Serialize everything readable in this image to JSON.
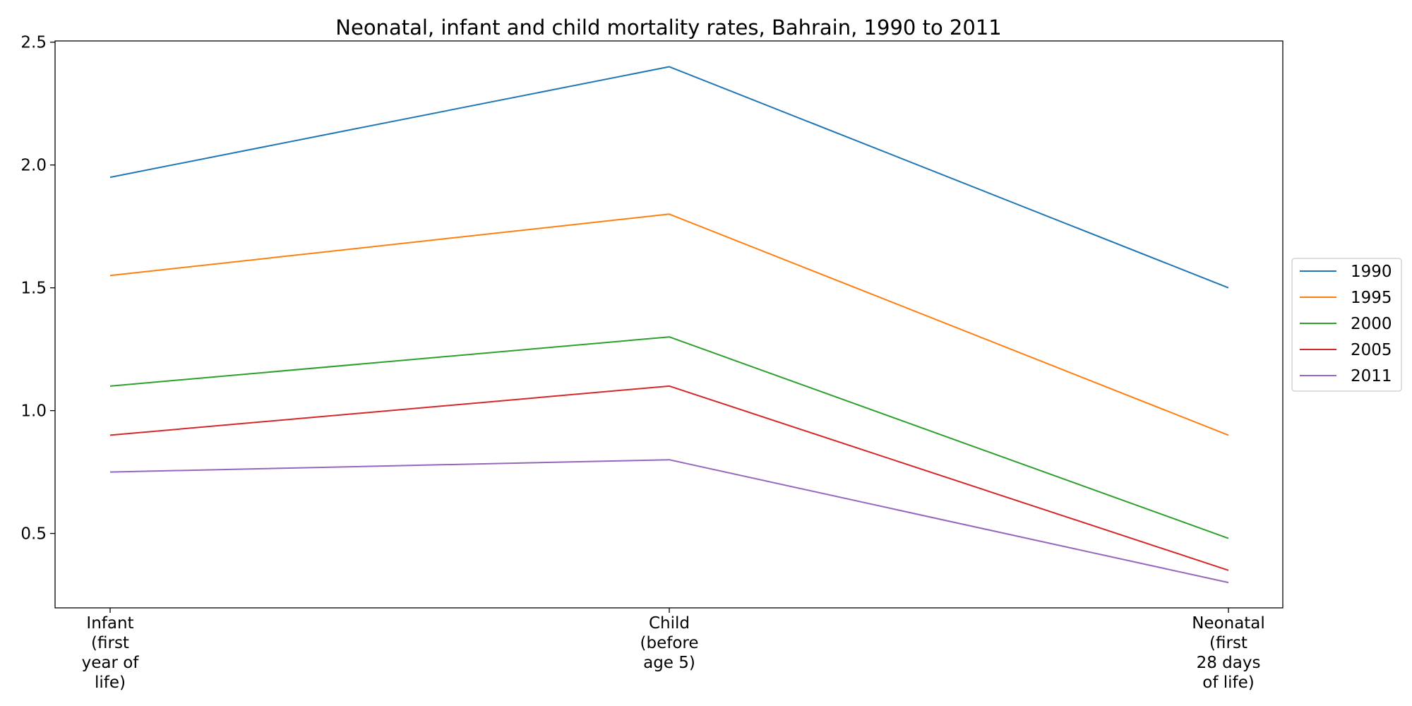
{
  "chart_data": {
    "type": "line",
    "title": "Neonatal, infant and child mortality rates, Bahrain, 1990 to 2011",
    "xlabel": "",
    "ylabel": "",
    "categories": [
      [
        "Infant",
        "(first",
        "year of",
        "life)"
      ],
      [
        "Child",
        "(before",
        "age 5)"
      ],
      [
        "Neonatal",
        "(first",
        "28 days",
        "of life)"
      ]
    ],
    "series": [
      {
        "name": "1990",
        "color": "#1f77b4",
        "values": [
          1.95,
          2.4,
          1.5
        ]
      },
      {
        "name": "1995",
        "color": "#ff7f0e",
        "values": [
          1.55,
          1.8,
          0.9
        ]
      },
      {
        "name": "2000",
        "color": "#2ca02c",
        "values": [
          1.1,
          1.3,
          0.48
        ]
      },
      {
        "name": "2005",
        "color": "#d62728",
        "values": [
          0.9,
          1.1,
          0.35
        ]
      },
      {
        "name": "2011",
        "color": "#9467bd",
        "values": [
          0.75,
          0.8,
          0.3
        ]
      }
    ],
    "yticks": [
      "0.5",
      "1.0",
      "1.5",
      "2.0",
      "2.5"
    ],
    "ylim": [
      0.197,
      2.505
    ],
    "grid": false,
    "legend_position": "right"
  }
}
